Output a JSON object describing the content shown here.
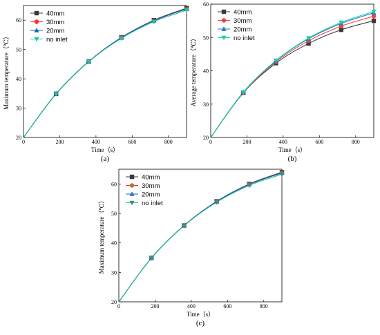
{
  "colors": {
    "axis": "#000000",
    "panel_ac": [
      "#3a3a3a",
      "#ff2d2d",
      "#1464b4",
      "#1ec8a0"
    ],
    "panel_b": [
      "#3a3a3a",
      "#ff3c3c",
      "#1e78c8",
      "#14d2aa"
    ],
    "markers_c": [
      "#3a3a3a",
      "#b07a2a",
      "#2a6ee0",
      "#4a8a7a"
    ]
  },
  "chart_data": [
    {
      "type": "line",
      "panel_label": "(a)",
      "xlabel": "Time（s）",
      "ylabel": "Maximum temperature（℃）",
      "xlim": [
        0,
        900
      ],
      "ylim": [
        20,
        65
      ],
      "xticks": [
        0,
        200,
        400,
        600,
        800
      ],
      "yticks": [
        20,
        30,
        40,
        50,
        60
      ],
      "marker_x": [
        0,
        180,
        360,
        540,
        720,
        900
      ],
      "legend_position": "top-left",
      "series": [
        {
          "name": "40mm",
          "marker": "square",
          "x": [
            0,
            180,
            360,
            540,
            720,
            900
          ],
          "values": [
            20,
            34.9,
            45.9,
            54.1,
            60.0,
            64.1
          ]
        },
        {
          "name": "30mm",
          "marker": "circle",
          "x": [
            0,
            180,
            360,
            540,
            720,
            900
          ],
          "values": [
            20,
            34.9,
            45.9,
            54.0,
            59.8,
            63.9
          ]
        },
        {
          "name": "20mm",
          "marker": "triangle-up",
          "x": [
            0,
            180,
            360,
            540,
            720,
            900
          ],
          "values": [
            20,
            34.9,
            45.9,
            54.0,
            59.9,
            63.8
          ]
        },
        {
          "name": "no inlet",
          "marker": "triangle-down",
          "x": [
            0,
            180,
            360,
            540,
            720,
            900
          ],
          "values": [
            20,
            34.8,
            45.8,
            53.8,
            59.5,
            63.4
          ]
        }
      ]
    },
    {
      "type": "line",
      "panel_label": "(b)",
      "xlabel": "Time（s）",
      "ylabel": "Average temperature（℃）",
      "xlim": [
        0,
        900
      ],
      "ylim": [
        20,
        60
      ],
      "xticks": [
        0,
        200,
        400,
        600,
        800
      ],
      "yticks": [
        20,
        30,
        40,
        50,
        60
      ],
      "marker_x": [
        0,
        180,
        360,
        540,
        720,
        900
      ],
      "legend_position": "top-left",
      "series": [
        {
          "name": "40mm",
          "marker": "square",
          "x": [
            0,
            180,
            360,
            540,
            720,
            900
          ],
          "values": [
            20,
            33.4,
            42.3,
            48.2,
            52.3,
            55.0
          ]
        },
        {
          "name": "30mm",
          "marker": "circle",
          "x": [
            0,
            180,
            360,
            540,
            720,
            900
          ],
          "values": [
            20,
            33.5,
            42.7,
            49.0,
            53.4,
            56.4
          ]
        },
        {
          "name": "20mm",
          "marker": "triangle-up",
          "x": [
            0,
            180,
            360,
            540,
            720,
            900
          ],
          "values": [
            20,
            33.6,
            43.0,
            49.6,
            54.2,
            57.4
          ]
        },
        {
          "name": "no inlet",
          "marker": "triangle-down",
          "x": [
            0,
            180,
            360,
            540,
            720,
            900
          ],
          "values": [
            20,
            33.6,
            43.1,
            49.8,
            54.5,
            57.8
          ]
        }
      ]
    },
    {
      "type": "line",
      "panel_label": "(c)",
      "xlabel": "Time（s）",
      "ylabel": "Maximum temperature（℃）",
      "xlim": [
        0,
        900
      ],
      "ylim": [
        20,
        65
      ],
      "xticks": [
        0,
        200,
        400,
        600,
        800
      ],
      "yticks": [
        20,
        30,
        40,
        50,
        60
      ],
      "marker_x": [
        0,
        180,
        360,
        540,
        720,
        900
      ],
      "legend_position": "top-left",
      "series": [
        {
          "name": "40mm",
          "marker": "square",
          "x": [
            0,
            180,
            360,
            540,
            720,
            900
          ],
          "values": [
            20,
            34.9,
            45.9,
            54.1,
            60.0,
            64.0
          ]
        },
        {
          "name": "30mm",
          "marker": "circle",
          "x": [
            0,
            180,
            360,
            540,
            720,
            900
          ],
          "values": [
            20,
            34.9,
            45.9,
            54.0,
            59.8,
            63.8
          ]
        },
        {
          "name": "20mm",
          "marker": "triangle-up",
          "x": [
            0,
            180,
            360,
            540,
            720,
            900
          ],
          "values": [
            20,
            34.9,
            45.9,
            54.0,
            59.9,
            63.7
          ]
        },
        {
          "name": "no inlet",
          "marker": "triangle-down",
          "x": [
            0,
            180,
            360,
            540,
            720,
            900
          ],
          "values": [
            20,
            34.8,
            45.8,
            53.8,
            59.5,
            63.3
          ]
        }
      ]
    }
  ]
}
